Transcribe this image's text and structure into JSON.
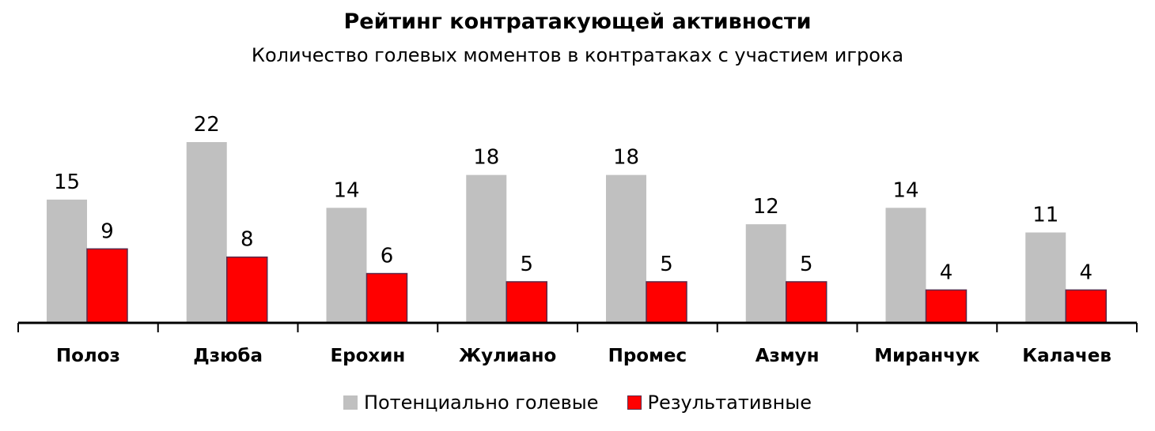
{
  "chart_data": {
    "type": "bar",
    "title": "Рейтинг контратакующей активности",
    "subtitle": "Количество голевых моментов в контратаках с участием игрока",
    "categories": [
      "Полоз",
      "Дзюба",
      "Ерохин",
      "Жулиано",
      "Промес",
      "Азмун",
      "Миранчук",
      "Калачев"
    ],
    "series": [
      {
        "name": "Потенциально голевые",
        "color": "#c0c0c0",
        "values": [
          15,
          22,
          14,
          18,
          18,
          12,
          14,
          11
        ]
      },
      {
        "name": "Результативные",
        "color": "#ff0000",
        "values": [
          9,
          8,
          6,
          5,
          5,
          5,
          4,
          4
        ]
      }
    ],
    "ylim": [
      0,
      22
    ],
    "xlabel": "",
    "ylabel": "",
    "grid": false,
    "legend": "bottom"
  }
}
